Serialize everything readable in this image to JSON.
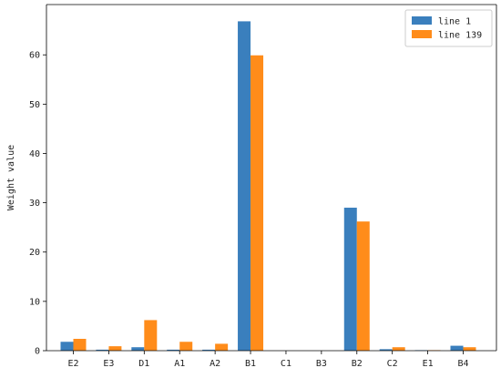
{
  "chart_data": {
    "type": "bar",
    "title": "",
    "xlabel": "",
    "ylabel": "Weight value",
    "categories": [
      "E2",
      "E3",
      "D1",
      "A1",
      "A2",
      "B1",
      "C1",
      "B3",
      "B2",
      "C2",
      "E1",
      "B4"
    ],
    "series": [
      {
        "name": "line 1",
        "color": "#3a7fbd",
        "values": [
          1.8,
          0.2,
          0.7,
          0.2,
          0.2,
          66.8,
          0.0,
          0.0,
          29.0,
          0.3,
          0.1,
          1.0
        ]
      },
      {
        "name": "line 139",
        "color": "#ff8c1a",
        "values": [
          2.4,
          0.9,
          6.2,
          1.8,
          1.4,
          59.9,
          0.0,
          0.0,
          26.2,
          0.7,
          0.1,
          0.7
        ]
      }
    ],
    "ylim": [
      0,
      70.2
    ],
    "yticks": [
      0,
      10,
      20,
      30,
      40,
      50,
      60
    ],
    "legend_position": "top-right",
    "grid": false
  }
}
